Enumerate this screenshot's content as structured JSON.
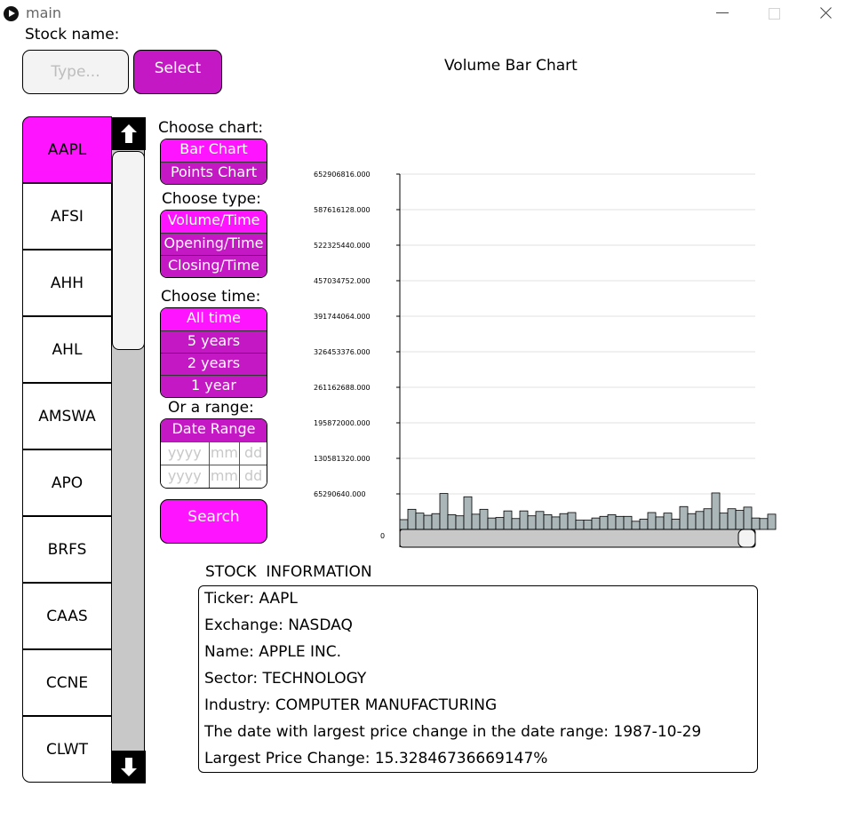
{
  "window": {
    "title": "main",
    "icon": "play-circle-icon"
  },
  "stock_search": {
    "label": "Stock name:",
    "placeholder": "Type...",
    "select_label": "Select"
  },
  "tickers": [
    "AAPL",
    "AFSI",
    "AHH",
    "AHL",
    "AMSWA",
    "APO",
    "BRFS",
    "CAAS",
    "CCNE",
    "CLWT"
  ],
  "selected_ticker": "AAPL",
  "chart_options": {
    "label": "Choose chart:",
    "items": [
      "Bar Chart",
      "Points Chart"
    ],
    "selected": "Bar Chart"
  },
  "type_options": {
    "label": "Choose type:",
    "items": [
      "Volume/Time",
      "Opening/Time",
      "Closing/Time"
    ],
    "selected": "Volume/Time"
  },
  "time_options": {
    "label": "Choose time:",
    "items": [
      "All time",
      "5 years",
      "2 years",
      "1 year"
    ],
    "selected": "All time"
  },
  "range": {
    "label": "Or a range:",
    "header": "Date Range",
    "placeholders": {
      "year": "yyyy",
      "month": "mm",
      "day": "dd"
    }
  },
  "search_label": "Search",
  "colors": {
    "accent": "#ff14ff",
    "accent_dark": "#c318c3",
    "bar": "#aab6b8"
  },
  "chart_data": {
    "type": "bar",
    "title": "Volume Bar Chart",
    "y_ticks": [
      "0",
      "65290640.000",
      "130581320.000",
      "195872000.000",
      "261162688.000",
      "326453376.000",
      "391744064.000",
      "457034752.000",
      "522325440.000",
      "587616128.000",
      "652906816.000"
    ],
    "ylim": [
      0,
      652906816
    ],
    "grid": true,
    "values": [
      18000000,
      37000000,
      30000000,
      26000000,
      29000000,
      66000000,
      27000000,
      25000000,
      60000000,
      28000000,
      37000000,
      21000000,
      22000000,
      34000000,
      20000000,
      34000000,
      25000000,
      33000000,
      27000000,
      23000000,
      29000000,
      31000000,
      17000000,
      17000000,
      21000000,
      24000000,
      27000000,
      24000000,
      24000000,
      15000000,
      19000000,
      31000000,
      23000000,
      30000000,
      19000000,
      42000000,
      29000000,
      33000000,
      38000000,
      67000000,
      30000000,
      38000000,
      35000000,
      41000000,
      21000000,
      20000000,
      28000000
    ]
  },
  "info": {
    "title": "STOCK  INFORMATION",
    "lines": [
      "Ticker: AAPL",
      "Exchange: NASDAQ",
      "Name: APPLE INC.",
      "Sector: TECHNOLOGY",
      "Industry: COMPUTER MANUFACTURING",
      "The date with largest price change in the date range: 1987-10-29",
      "Largest Price Change: 15.32846736669147%"
    ]
  }
}
